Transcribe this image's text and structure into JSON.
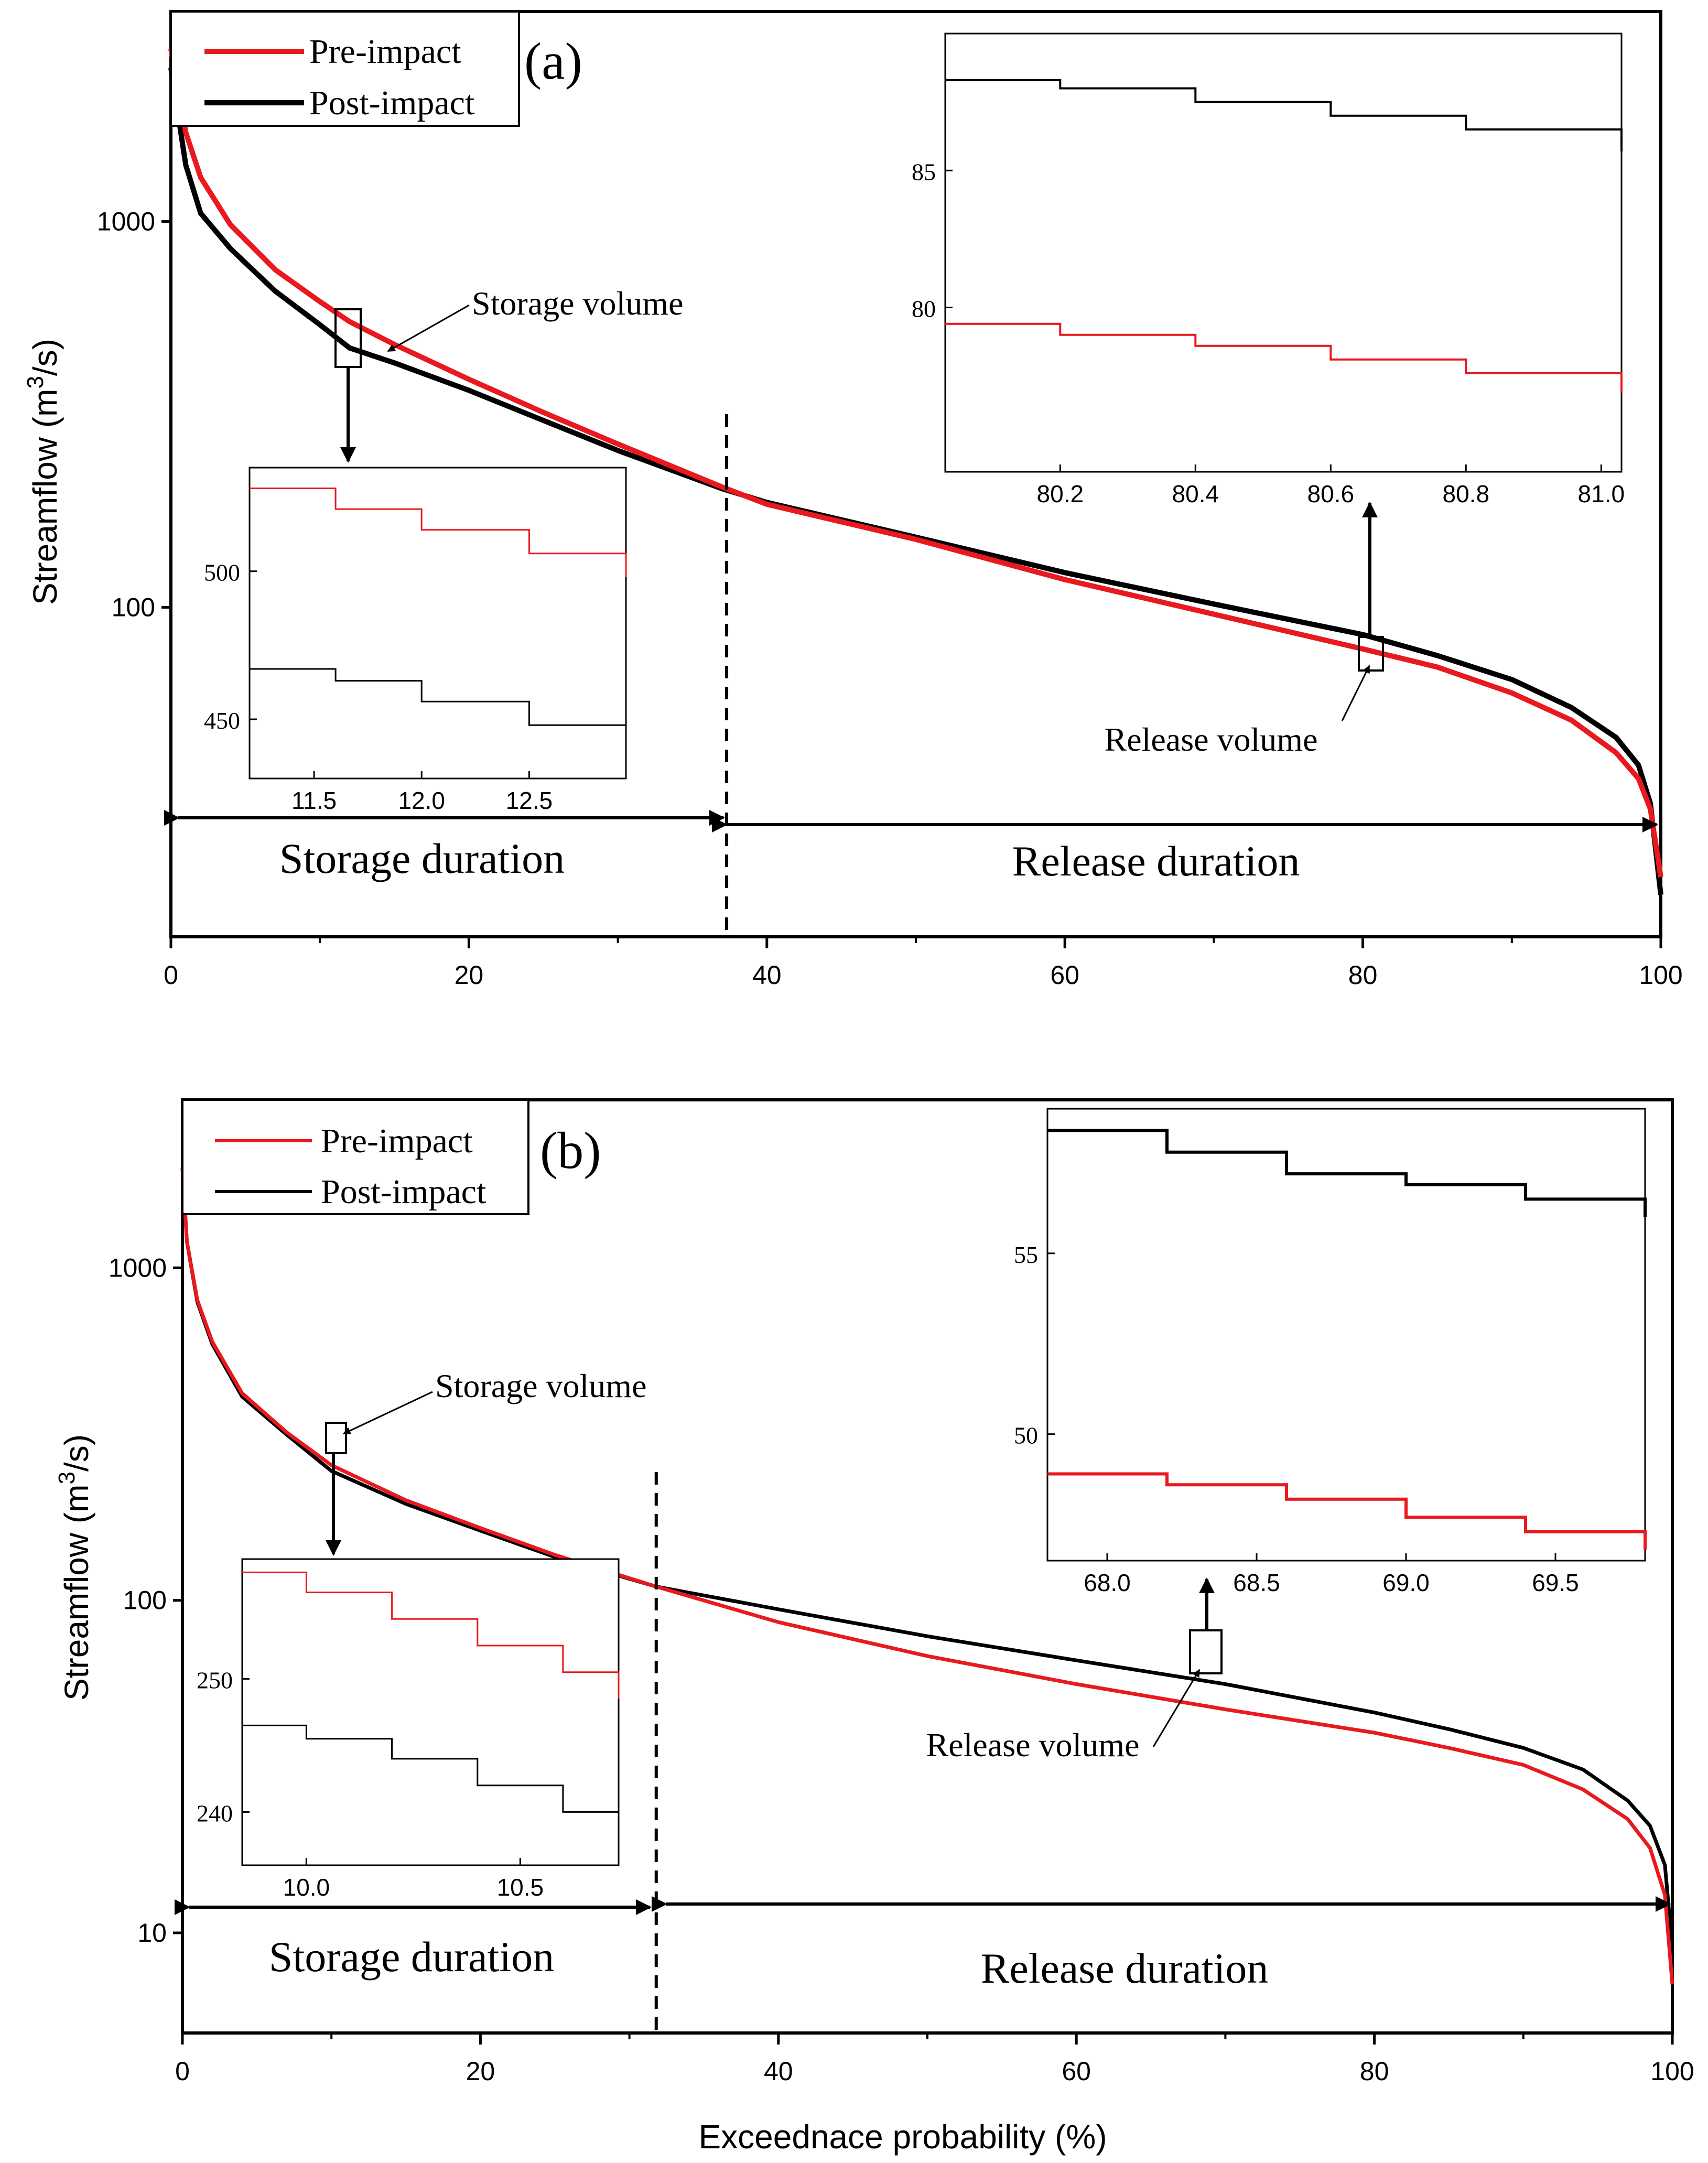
{
  "figure": {
    "x_axis_label": "Exceednace probability (%)",
    "y_axis_label_prefix": "Streamflow (m",
    "y_axis_label_sup": "3",
    "y_axis_label_suffix": "/s)"
  },
  "colors": {
    "pre": "#e8191f",
    "post": "#000000",
    "axis": "#000000"
  },
  "chart_data": [
    {
      "panel": "(a)",
      "type": "line",
      "yscale": "log",
      "xlim": [
        0,
        100
      ],
      "ylim": [
        14,
        3500
      ],
      "x_ticks": [
        "0",
        "20",
        "40",
        "60",
        "80",
        "100"
      ],
      "y_ticks": [
        "100",
        "1000"
      ],
      "xlabel": "Exceednace probability (%)",
      "ylabel": "Streamflow (m3/s)",
      "legend": [
        "Pre-impact",
        "Post-impact"
      ],
      "series": [
        {
          "name": "Pre-impact",
          "x": [
            0,
            1,
            2,
            4,
            7,
            10,
            12,
            15,
            20,
            25,
            30,
            37,
            40,
            50,
            60,
            70,
            80,
            85,
            90,
            94,
            97,
            98.5,
            99.3,
            100
          ],
          "y": [
            2800,
            1700,
            1300,
            980,
            750,
            620,
            550,
            480,
            390,
            320,
            265,
            205,
            185,
            150,
            118,
            96,
            78,
            70,
            60,
            51,
            42,
            36,
            30,
            20
          ]
        },
        {
          "name": "Post-impact",
          "x": [
            0,
            1,
            2,
            4,
            7,
            10,
            12,
            15,
            20,
            25,
            30,
            37,
            40,
            50,
            60,
            70,
            80,
            85,
            90,
            94,
            97,
            98.5,
            99.3,
            100
          ],
          "y": [
            2500,
            1400,
            1050,
            850,
            660,
            540,
            470,
            430,
            365,
            305,
            255,
            203,
            187,
            152,
            123,
            102,
            85,
            75,
            65,
            55,
            46,
            39,
            31,
            18
          ]
        }
      ],
      "split_x": 37.3,
      "duration_labels": [
        "Storage duration",
        "Release duration"
      ],
      "annotations": [
        "Storage volume",
        "Release volume"
      ],
      "insets": [
        {
          "name": "storage",
          "xlim": [
            11.2,
            12.95
          ],
          "ylim": [
            430,
            535
          ],
          "x_ticks": [
            "11.5",
            "12.0",
            "12.5"
          ],
          "y_ticks": [
            "450",
            "500"
          ],
          "series": [
            {
              "name": "Pre-impact",
              "x": [
                11.2,
                11.6,
                12.0,
                12.5,
                12.95
              ],
              "y": [
                528,
                521,
                514,
                506,
                498
              ]
            },
            {
              "name": "Post-impact",
              "x": [
                11.2,
                11.6,
                12.0,
                12.5,
                12.95
              ],
              "y": [
                467,
                463,
                456,
                448,
                438
              ]
            }
          ]
        },
        {
          "name": "release",
          "xlim": [
            80.03,
            81.03
          ],
          "ylim": [
            74,
            90
          ],
          "x_ticks": [
            "80.2",
            "80.4",
            "80.6",
            "80.8",
            "81.0"
          ],
          "y_ticks": [
            "80",
            "85"
          ],
          "series": [
            {
              "name": "Pre-impact",
              "x": [
                80.03,
                80.2,
                80.4,
                80.6,
                80.8,
                81.03
              ],
              "y": [
                79.4,
                79.0,
                78.6,
                78.1,
                77.6,
                76.9
              ]
            },
            {
              "name": "Post-impact",
              "x": [
                80.03,
                80.2,
                80.4,
                80.6,
                80.8,
                81.03
              ],
              "y": [
                88.3,
                88.0,
                87.5,
                87.0,
                86.5,
                85.7
              ]
            }
          ]
        }
      ]
    },
    {
      "panel": "(b)",
      "type": "line",
      "yscale": "log",
      "xlim": [
        0,
        100
      ],
      "ylim": [
        5,
        3200
      ],
      "x_ticks": [
        "0",
        "20",
        "40",
        "60",
        "80",
        "100"
      ],
      "y_ticks": [
        "10",
        "100",
        "1000"
      ],
      "xlabel": "Exceednace probability (%)",
      "ylabel": "Streamflow (m3/s)",
      "legend": [
        "Pre-impact",
        "Post-impact"
      ],
      "series": [
        {
          "name": "Pre-impact",
          "x": [
            0,
            0.3,
            1,
            2,
            4,
            7,
            10,
            15,
            20,
            25,
            31.8,
            40,
            50,
            60,
            70,
            80,
            85,
            90,
            94,
            97,
            98.5,
            99.5,
            100
          ],
          "y": [
            2000,
            1200,
            800,
            600,
            420,
            320,
            255,
            200,
            165,
            137,
            110,
            86,
            68,
            56,
            47,
            40,
            36,
            32,
            27,
            22,
            18,
            13,
            7
          ]
        },
        {
          "name": "Post-impact",
          "x": [
            0,
            0.3,
            1,
            2,
            4,
            7,
            10,
            15,
            20,
            25,
            31.8,
            40,
            50,
            60,
            70,
            80,
            85,
            90,
            94,
            97,
            98.5,
            99.5,
            100
          ],
          "y": [
            2000,
            1200,
            790,
            590,
            410,
            315,
            245,
            195,
            162,
            135,
            110,
            94,
            78,
            66,
            56,
            46,
            41,
            36,
            31,
            25,
            21,
            16,
            9
          ]
        }
      ],
      "split_x": 31.8,
      "duration_labels": [
        "Storage duration",
        "Release duration"
      ],
      "annotations": [
        "Storage volume",
        "Release volume"
      ],
      "insets": [
        {
          "name": "storage",
          "xlim": [
            9.85,
            10.73
          ],
          "ylim": [
            236,
            259
          ],
          "x_ticks": [
            "10.0",
            "10.5"
          ],
          "y_ticks": [
            "240",
            "250"
          ],
          "series": [
            {
              "name": "Pre-impact",
              "x": [
                9.85,
                10.0,
                10.2,
                10.4,
                10.6,
                10.73
              ],
              "y": [
                258,
                256.5,
                254.5,
                252.5,
                250.5,
                248.5
              ]
            },
            {
              "name": "Post-impact",
              "x": [
                9.85,
                10.0,
                10.2,
                10.4,
                10.6,
                10.73
              ],
              "y": [
                246.5,
                245.5,
                244,
                242,
                240,
                237.5
              ]
            }
          ]
        },
        {
          "name": "release",
          "xlim": [
            67.8,
            69.8
          ],
          "ylim": [
            46.5,
            59
          ],
          "x_ticks": [
            "68.0",
            "68.5",
            "69.0",
            "69.5"
          ],
          "y_ticks": [
            "50",
            "55"
          ],
          "series": [
            {
              "name": "Pre-impact",
              "x": [
                67.8,
                68.2,
                68.6,
                69.0,
                69.4,
                69.8
              ],
              "y": [
                48.9,
                48.6,
                48.2,
                47.7,
                47.3,
                46.8
              ]
            },
            {
              "name": "Post-impact",
              "x": [
                67.8,
                68.2,
                68.6,
                69.0,
                69.4,
                69.8
              ],
              "y": [
                58.4,
                57.8,
                57.2,
                56.9,
                56.5,
                56.0
              ]
            }
          ]
        }
      ]
    }
  ]
}
